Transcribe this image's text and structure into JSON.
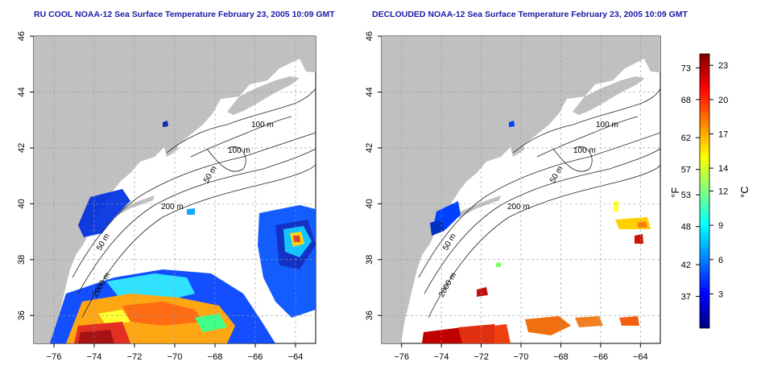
{
  "titles": {
    "left": "RU COOL NOAA-12 Sea Surface Temperature February 23, 2005 10:09 GMT",
    "right": "DECLOUDED NOAA-12 Sea Surface Temperature February 23, 2005 10:09 GMT"
  },
  "map_axes": {
    "lon_min": -77,
    "lon_max": -63,
    "lat_min": 35,
    "lat_max": 46,
    "lon_ticks": [
      -76,
      -74,
      -72,
      -70,
      -68,
      -66,
      -64
    ],
    "lat_ticks": [
      36,
      38,
      40,
      42,
      44,
      46
    ],
    "grid": "dashed"
  },
  "depth_labels": [
    "100 m",
    "100 m",
    "50 m",
    "200 m",
    "50 m",
    "2000 m"
  ],
  "colorbar": {
    "fahrenheit_label": "°F",
    "celsius_label": "°C",
    "fahrenheit_ticks": [
      "73",
      "68",
      "62",
      "57",
      "53",
      "48",
      "42",
      "37"
    ],
    "celsius_ticks": [
      "23",
      "20",
      "17",
      "14",
      "12",
      "9",
      "6",
      "3"
    ],
    "celsius_range": [
      0,
      24
    ],
    "fahrenheit_range": [
      32,
      75.2
    ],
    "colors": [
      "#000080",
      "#0000ff",
      "#0080ff",
      "#00ffff",
      "#80ff80",
      "#ffff00",
      "#ff8000",
      "#ff0000",
      "#800000"
    ]
  },
  "colors": {
    "land": "#c0c0c0",
    "ocean": "#ffffff",
    "title": "#1a1aa6"
  }
}
